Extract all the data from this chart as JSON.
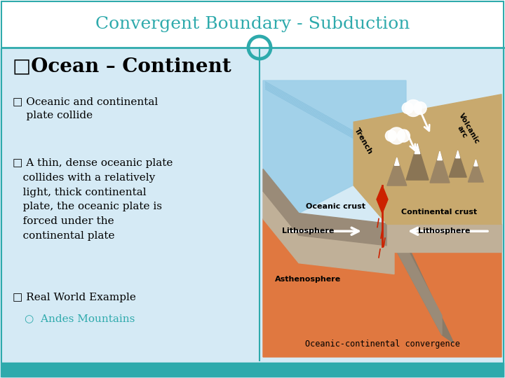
{
  "title": "Convergent Boundary - Subduction",
  "title_color": "#2EAAAC",
  "title_fontsize": 18,
  "background_color": "#D5EAF5",
  "header_bg": "#FFFFFF",
  "header_line_color": "#2EAAAC",
  "bullet1": "□Ocean – Continent",
  "bullet1_fontsize": 20,
  "bullet2_label": "□ Oceanic and continental\n    plate collide",
  "bullet3_label": "□ A thin, dense oceanic plate\n   collides with a relatively\n   light, thick continental\n   plate, the oceanic plate is\n   forced under the\n   continental plate",
  "bullet4_label": "□ Real World Example",
  "sub_bullet": "○  Andes Mountains",
  "sub_bullet_color": "#2EAAAC",
  "text_color": "#000000",
  "divider_color": "#2EAAAC",
  "circle_color": "#2EAAAC",
  "bottom_bar_color": "#2EAAAC",
  "ocean_color": "#9DCFE8",
  "ocean_stripe_color": "#7AB8D8",
  "continent_color": "#C8A96E",
  "oceanic_crust_color": "#A89880",
  "litho_color": "#C0B098",
  "asthen_color": "#E07840",
  "slab_color": "#A89878",
  "caption": "Oceanic-continental convergence"
}
